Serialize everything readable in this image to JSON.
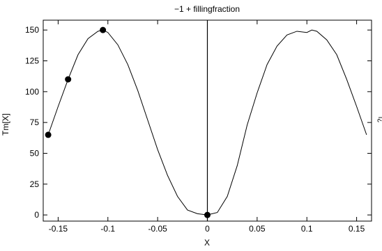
{
  "chart_data": {
    "type": "line",
    "title": "−1 + fillingfraction",
    "xlabel": "X",
    "ylabel": "Tm[X]",
    "side_label": "î¿",
    "xlim": [
      -0.165,
      0.165
    ],
    "ylim": [
      -5,
      158
    ],
    "xticks": [
      -0.15,
      -0.1,
      -0.05,
      0,
      0.05,
      0.1,
      0.15
    ],
    "xtick_labels": [
      "-0.15",
      "-0.1",
      "-0.05",
      "0",
      "0.05",
      "0.1",
      "0.15"
    ],
    "yticks": [
      0,
      25,
      50,
      75,
      100,
      125,
      150
    ],
    "ytick_labels": [
      "0",
      "25",
      "50",
      "75",
      "100",
      "125",
      "150"
    ],
    "grid": false,
    "series": [
      {
        "x": [
          -0.16,
          -0.15,
          -0.14,
          -0.13,
          -0.12,
          -0.11,
          -0.105,
          -0.1,
          -0.09,
          -0.08,
          -0.07,
          -0.06,
          -0.05,
          -0.04,
          -0.03,
          -0.02,
          -0.01,
          0,
          0.01,
          0.02,
          0.03,
          0.04,
          0.05,
          0.06,
          0.07,
          0.08,
          0.09,
          0.1,
          0.105,
          0.11,
          0.12,
          0.13,
          0.14,
          0.15,
          0.16
        ],
        "values": [
          65,
          88,
          110,
          130,
          143,
          149,
          150,
          148,
          138,
          122,
          101,
          77,
          53,
          32,
          15,
          4,
          1,
          0,
          2,
          15,
          40,
          73,
          99,
          122,
          137,
          146,
          149,
          148,
          150,
          149,
          142,
          130,
          110,
          88,
          65
        ]
      }
    ],
    "highlighted_points": [
      {
        "x": -0.16,
        "y": 65
      },
      {
        "x": -0.14,
        "y": 110
      },
      {
        "x": -0.105,
        "y": 150
      },
      {
        "x": 0,
        "y": 0
      }
    ],
    "vertical_line_x": 0
  }
}
